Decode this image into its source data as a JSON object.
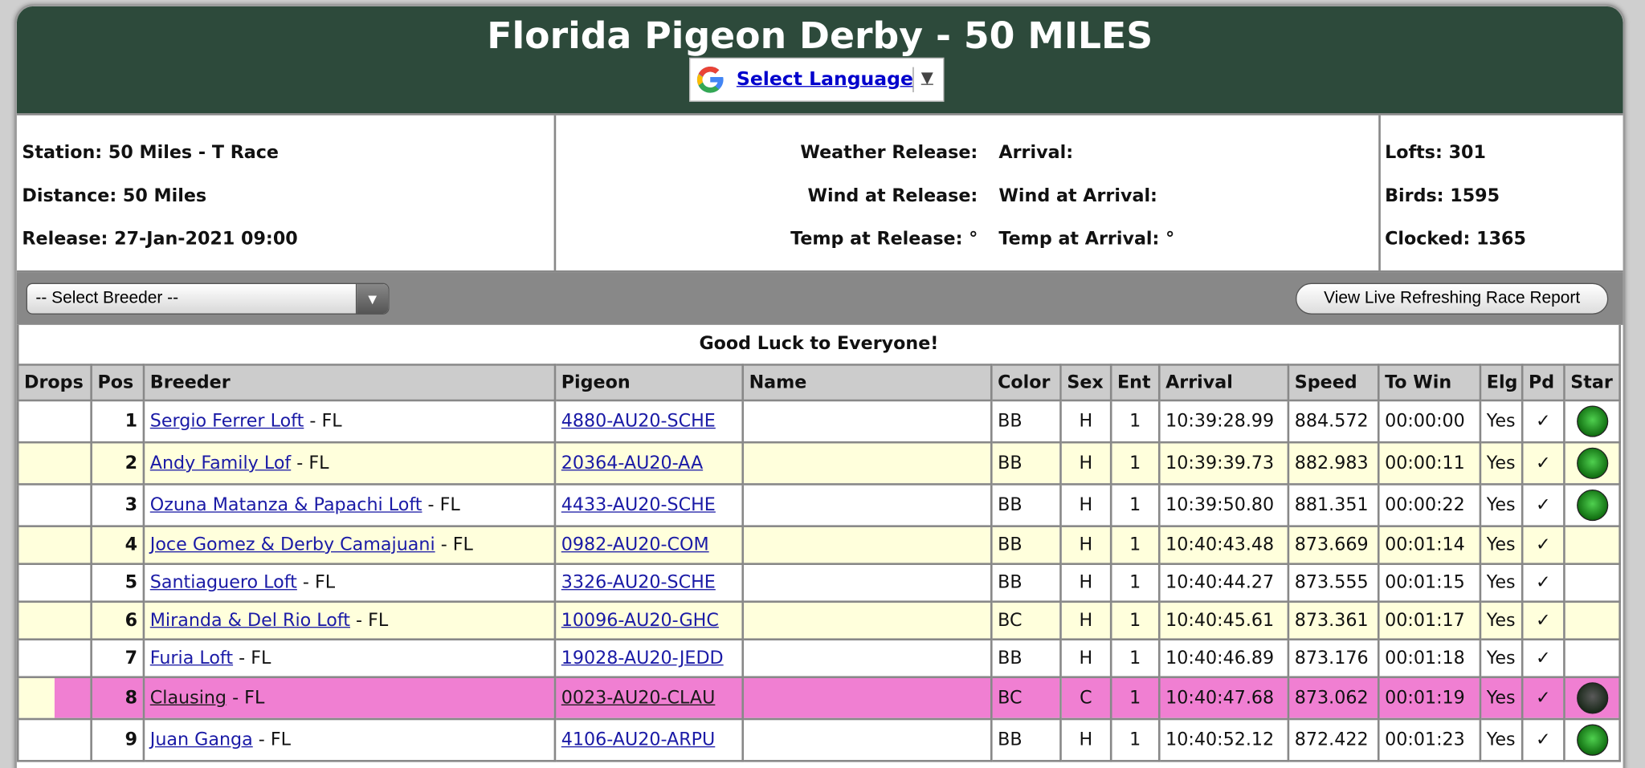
{
  "header": {
    "title": "Florida Pigeon Derby - 50 MILES",
    "language": "Select Language"
  },
  "info": {
    "left": [
      "Station: 50 Miles - T Race",
      "Distance: 50 Miles",
      "Release: 27-Jan-2021 09:00"
    ],
    "middle": [
      [
        "Weather Release:",
        "Arrival:"
      ],
      [
        "Wind at Release:",
        "Wind at Arrival:"
      ],
      [
        "Temp at Release: °",
        "Temp at Arrival: °"
      ]
    ],
    "right": [
      "Lofts: 301",
      "Birds: 1595",
      "Clocked: 1365"
    ]
  },
  "controls": {
    "breeder_select": "-- Select Breeder --",
    "report_button": "View Live Refreshing Race Report"
  },
  "table": {
    "caption": "Good Luck to Everyone!",
    "columns": [
      "Drops",
      "Pos",
      "Breeder",
      "Pigeon",
      "Name",
      "Color",
      "Sex",
      "Ent",
      "Arrival",
      "Speed",
      "To Win",
      "Elg",
      "Pd",
      "Star"
    ],
    "rows": [
      {
        "pos": "1",
        "breeder": "Sergio Ferrer Loft",
        "state": "- FL",
        "pigeon": "4880-AU20-SCHE",
        "color": "BB",
        "sex": "H",
        "ent": "1",
        "arrival": "10:39:28.99",
        "speed": "884.572",
        "to_win": "00:00:00",
        "elg": "Yes",
        "pd": "✓",
        "star": "green"
      },
      {
        "pos": "2",
        "breeder": "Andy Family Lof",
        "state": "- FL",
        "pigeon": "20364-AU20-AA",
        "color": "BB",
        "sex": "H",
        "ent": "1",
        "arrival": "10:39:39.73",
        "speed": "882.983",
        "to_win": "00:00:11",
        "elg": "Yes",
        "pd": "✓",
        "star": "green"
      },
      {
        "pos": "3",
        "breeder": "Ozuna Matanza & Papachi Loft",
        "state": "- FL",
        "pigeon": "4433-AU20-SCHE",
        "color": "BB",
        "sex": "H",
        "ent": "1",
        "arrival": "10:39:50.80",
        "speed": "881.351",
        "to_win": "00:00:22",
        "elg": "Yes",
        "pd": "✓",
        "star": "green"
      },
      {
        "pos": "4",
        "breeder": "Joce Gomez & Derby Camajuani",
        "state": "- FL",
        "pigeon": "0982-AU20-COM",
        "color": "BB",
        "sex": "H",
        "ent": "1",
        "arrival": "10:40:43.48",
        "speed": "873.669",
        "to_win": "00:01:14",
        "elg": "Yes",
        "pd": "✓"
      },
      {
        "pos": "5",
        "breeder": "Santiaguero Loft",
        "state": "- FL",
        "pigeon": "3326-AU20-SCHE",
        "color": "BB",
        "sex": "H",
        "ent": "1",
        "arrival": "10:40:44.27",
        "speed": "873.555",
        "to_win": "00:01:15",
        "elg": "Yes",
        "pd": "✓"
      },
      {
        "pos": "6",
        "breeder": "Miranda & Del Rio Loft",
        "state": "- FL",
        "pigeon": "10096-AU20-GHC",
        "color": "BC",
        "sex": "H",
        "ent": "1",
        "arrival": "10:40:45.61",
        "speed": "873.361",
        "to_win": "00:01:17",
        "elg": "Yes",
        "pd": "✓"
      },
      {
        "pos": "7",
        "breeder": "Furia Loft",
        "state": "- FL",
        "pigeon": "19028-AU20-JEDD",
        "color": "BB",
        "sex": "H",
        "ent": "1",
        "arrival": "10:40:46.89",
        "speed": "873.176",
        "to_win": "00:01:18",
        "elg": "Yes",
        "pd": "✓"
      },
      {
        "pos": "8",
        "breeder": "Clausing",
        "state": "- FL",
        "pigeon": "0023-AU20-CLAU",
        "color": "BC",
        "sex": "C",
        "ent": "1",
        "arrival": "10:40:47.68",
        "speed": "873.062",
        "to_win": "00:01:19",
        "elg": "Yes",
        "pd": "✓",
        "star": "dark",
        "highlight": true
      },
      {
        "pos": "9",
        "breeder": "Juan Ganga",
        "state": "- FL",
        "pigeon": "4106-AU20-ARPU",
        "color": "BB",
        "sex": "H",
        "ent": "1",
        "arrival": "10:40:52.12",
        "speed": "872.422",
        "to_win": "00:01:23",
        "elg": "Yes",
        "pd": "✓",
        "star": "green"
      }
    ]
  }
}
